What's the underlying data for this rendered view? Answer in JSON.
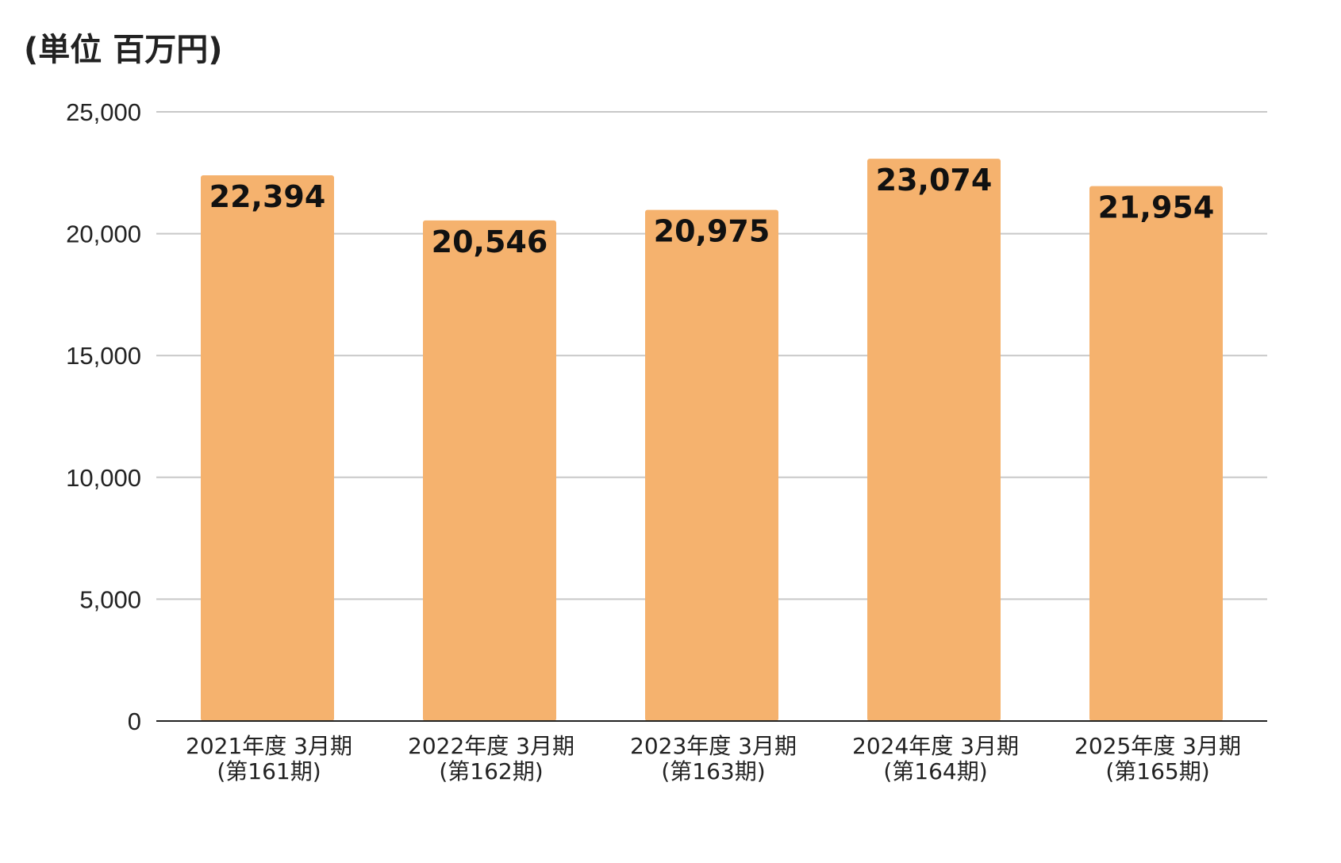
{
  "unit_label": "(単位 百万円)",
  "colors": {
    "bar": "#F5B26E",
    "grid": "#C8C8C8",
    "axis": "#222222"
  },
  "chart_data": {
    "type": "bar",
    "categories": [
      [
        "2021年度 3月期",
        "(第161期)"
      ],
      [
        "2022年度 3月期",
        "(第162期)"
      ],
      [
        "2023年度 3月期",
        "(第163期)"
      ],
      [
        "2024年度 3月期",
        "(第164期)"
      ],
      [
        "2025年度 3月期",
        "(第165期)"
      ]
    ],
    "values": [
      22394,
      20546,
      20975,
      23074,
      21954
    ],
    "data_labels": [
      "22,394",
      "20,546",
      "20,975",
      "23,074",
      "21,954"
    ],
    "ylim": [
      0,
      25000
    ],
    "yticks": [
      0,
      5000,
      10000,
      15000,
      20000,
      25000
    ],
    "ytick_labels": [
      "0",
      "5,000",
      "10,000",
      "15,000",
      "20,000",
      "25,000"
    ],
    "grid": true,
    "legend": "none",
    "title": "",
    "xlabel": "",
    "ylabel": ""
  }
}
